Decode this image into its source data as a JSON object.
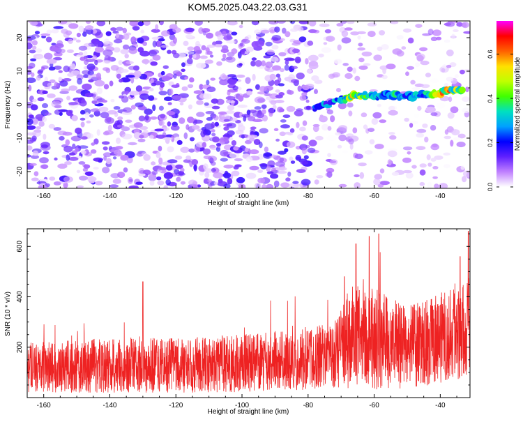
{
  "title": "KOM5.2025.043.22.03.G31",
  "chart_data": [
    {
      "type": "heatmap",
      "xlabel": "Height of straight line (km)",
      "ylabel": "Frequency (Hz)",
      "xlim": [
        -165,
        -31
      ],
      "ylim": [
        -25,
        25
      ],
      "x_ticks": [
        -160,
        -140,
        -120,
        -100,
        -80,
        -60,
        -40
      ],
      "y_ticks": [
        -20,
        -10,
        0,
        10,
        20
      ],
      "colorbar": {
        "label": "Normalized spectral amplitude",
        "range": [
          0,
          0.75
        ],
        "ticks": [
          0.0,
          0.2,
          0.4,
          0.6
        ],
        "colors": [
          "#ffffff",
          "#c080ff",
          "#6020ff",
          "#0000ff",
          "#00a0ff",
          "#00e0c0",
          "#40ff00",
          "#c0ff00",
          "#ffe000",
          "#ff6000",
          "#ff0000",
          "#ff00ff"
        ]
      },
      "features": {
        "noise_floor_amplitude": 0.08,
        "signal_start_km": -79,
        "signal_trace": [
          {
            "x": -78,
            "freq": -1.0,
            "amp": 0.25
          },
          {
            "x": -70,
            "freq": 1.5,
            "amp": 0.35
          },
          {
            "x": -66,
            "freq": 2.5,
            "amp": 0.55
          },
          {
            "x": -60,
            "freq": 2.8,
            "amp": 0.3
          },
          {
            "x": -56,
            "freq": 3.0,
            "amp": 0.4
          },
          {
            "x": -50,
            "freq": 2.5,
            "amp": 0.3
          },
          {
            "x": -44,
            "freq": 3.0,
            "amp": 0.35
          },
          {
            "x": -38,
            "freq": 4.0,
            "amp": 0.7
          },
          {
            "x": -33,
            "freq": 4.5,
            "amp": 0.4
          }
        ]
      },
      "grid": false
    },
    {
      "type": "line",
      "xlabel": "Height of straight line (km)",
      "ylabel": "SNR (10 * v/v)",
      "xlim": [
        -165,
        -31
      ],
      "ylim": [
        0,
        670
      ],
      "x_ticks": [
        -160,
        -140,
        -120,
        -100,
        -80,
        -60,
        -40
      ],
      "y_ticks": [
        200,
        400,
        600
      ],
      "series": [
        {
          "color": "#ee2222",
          "envelope": [
            {
              "x": -165,
              "mean": 120,
              "spread": 100
            },
            {
              "x": -140,
              "mean": 125,
              "spread": 110
            },
            {
              "x": -120,
              "mean": 130,
              "spread": 110
            },
            {
              "x": -100,
              "mean": 135,
              "spread": 115
            },
            {
              "x": -82,
              "mean": 150,
              "spread": 120
            },
            {
              "x": -72,
              "mean": 170,
              "spread": 130
            },
            {
              "x": -68,
              "mean": 230,
              "spread": 200
            },
            {
              "x": -64,
              "mean": 260,
              "spread": 200
            },
            {
              "x": -58,
              "mean": 220,
              "spread": 200
            },
            {
              "x": -50,
              "mean": 200,
              "spread": 160
            },
            {
              "x": -42,
              "mean": 230,
              "spread": 180
            },
            {
              "x": -36,
              "mean": 250,
              "spread": 180
            },
            {
              "x": -31,
              "mean": 280,
              "spread": 200
            }
          ],
          "peaks": [
            {
              "x": -65.5,
              "y": 610
            },
            {
              "x": -61.5,
              "y": 640
            },
            {
              "x": -58.6,
              "y": 650
            },
            {
              "x": -31.5,
              "y": 660
            },
            {
              "x": -34,
              "y": 560
            },
            {
              "x": -69,
              "y": 480
            },
            {
              "x": -130,
              "y": 460
            }
          ]
        }
      ],
      "grid": false
    }
  ]
}
